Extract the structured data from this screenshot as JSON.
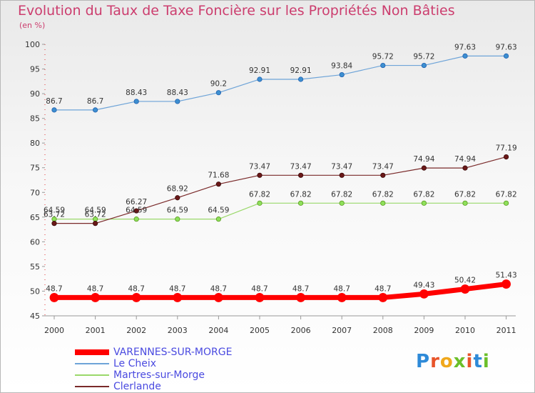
{
  "title": "Evolution du Taux de Taxe Foncière sur les Propriétés Non Bâties",
  "subtitle": "(en %)",
  "logo": {
    "text": "Proxiti",
    "colors": [
      "#2e8ad8",
      "#e8542a",
      "#f0a81c",
      "#6bbf2a",
      "#e8542a",
      "#2e8ad8",
      "#6bbf2a"
    ]
  },
  "chart_data": {
    "type": "line",
    "x": [
      "2000",
      "2001",
      "2002",
      "2003",
      "2004",
      "2005",
      "2006",
      "2007",
      "2008",
      "2009",
      "2010",
      "2011"
    ],
    "ylim": [
      45,
      100
    ],
    "yticks": [
      45,
      50,
      55,
      60,
      65,
      70,
      75,
      80,
      85,
      90,
      95,
      100
    ],
    "legend_position": "bottom-left",
    "series": [
      {
        "name": "VARENNES-SUR-MORGE",
        "color": "#ff0000",
        "values": [
          48.7,
          48.7,
          48.7,
          48.7,
          48.7,
          48.7,
          48.7,
          48.7,
          48.7,
          49.43,
          50.42,
          51.43
        ],
        "labels": [
          "48.7",
          "48.7",
          "48.7",
          "48.7",
          "48.7",
          "48.7",
          "48.7",
          "48.7",
          "48.7",
          "49.43",
          "50.42",
          "51.43"
        ]
      },
      {
        "name": "Le Cheix",
        "color": "#6ea4d8",
        "values": [
          86.7,
          86.7,
          88.43,
          88.43,
          90.2,
          92.91,
          92.91,
          93.84,
          95.72,
          95.72,
          97.63,
          97.63
        ],
        "labels": [
          "86.7",
          "86.7",
          "88.43",
          "88.43",
          "90.2",
          "92.91",
          "92.91",
          "93.84",
          "95.72",
          "95.72",
          "97.63",
          "97.63"
        ]
      },
      {
        "name": "Martres-sur-Morge",
        "color": "#9ad86a",
        "values": [
          64.59,
          64.59,
          64.59,
          64.59,
          64.59,
          67.82,
          67.82,
          67.82,
          67.82,
          67.82,
          67.82,
          67.82
        ],
        "labels": [
          "64.59",
          "64.59",
          "64.59",
          "64.59",
          "64.59",
          "67.82",
          "67.82",
          "67.82",
          "67.82",
          "67.82",
          "67.82",
          "67.82"
        ]
      },
      {
        "name": "Clerlande",
        "color": "#7a2a2a",
        "values": [
          63.72,
          63.72,
          66.27,
          68.92,
          71.68,
          73.47,
          73.47,
          73.47,
          73.47,
          74.94,
          74.94,
          77.19
        ],
        "labels": [
          "63.72",
          "63.72",
          "66.27",
          "68.92",
          "71.68",
          "73.47",
          "73.47",
          "73.47",
          "73.47",
          "74.94",
          "74.94",
          "77.19"
        ]
      }
    ]
  }
}
